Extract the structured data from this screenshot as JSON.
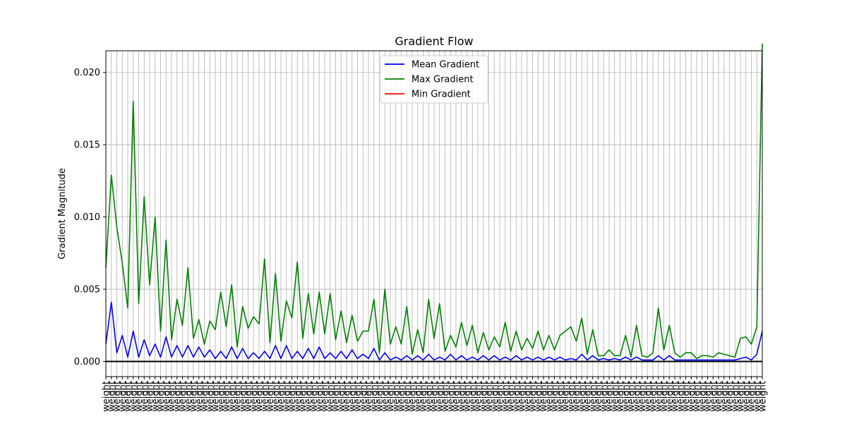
{
  "chart_data": {
    "type": "line",
    "title": "Gradient Flow",
    "xlabel": "",
    "ylabel": "Gradient Magnitude",
    "ylim": [
      -0.00105,
      0.0215
    ],
    "yticks": [
      0.0,
      0.005,
      0.01,
      0.015,
      0.02
    ],
    "ytick_labels": [
      "0.000",
      "0.005",
      "0.010",
      "0.015",
      "0.020"
    ],
    "x_tick_label": "weight",
    "grid": true,
    "legend_position": "upper center",
    "x": [
      0,
      1,
      2,
      3,
      4,
      5,
      6,
      7,
      8,
      9,
      10,
      11,
      12,
      13,
      14,
      15,
      16,
      17,
      18,
      19,
      20,
      21,
      22,
      23,
      24,
      25,
      26,
      27,
      28,
      29,
      30,
      31,
      32,
      33,
      34,
      35,
      36,
      37,
      38,
      39,
      40,
      41,
      42,
      43,
      44,
      45,
      46,
      47,
      48,
      49,
      50,
      51,
      52,
      53,
      54,
      55,
      56,
      57,
      58,
      59,
      60,
      61,
      62,
      63,
      64,
      65,
      66,
      67,
      68,
      69,
      70,
      71,
      72,
      73,
      74,
      75,
      76,
      77,
      78,
      79,
      80,
      81,
      82,
      83,
      84,
      85,
      86,
      87,
      88,
      89,
      90,
      91,
      92,
      93,
      94,
      95,
      96,
      97,
      98,
      99,
      100,
      101,
      102,
      103,
      104,
      105,
      106,
      107,
      108,
      109,
      110,
      111,
      112,
      113,
      114,
      115,
      116,
      117,
      118,
      119,
      120
    ],
    "series": [
      {
        "name": "Mean Gradient",
        "color": "#0000ff",
        "values": [
          0.0012,
          0.0041,
          0.0006,
          0.0018,
          0.0003,
          0.0021,
          0.0003,
          0.0015,
          0.0004,
          0.0012,
          0.0003,
          0.0017,
          0.0003,
          0.0011,
          0.0003,
          0.0011,
          0.0003,
          0.001,
          0.0003,
          0.0008,
          0.0002,
          0.0007,
          0.0002,
          0.001,
          0.0002,
          0.0009,
          0.0002,
          0.0006,
          0.0002,
          0.0007,
          0.0002,
          0.0011,
          0.0002,
          0.0011,
          0.0002,
          0.0007,
          0.0002,
          0.0009,
          0.0002,
          0.001,
          0.0002,
          0.0006,
          0.0002,
          0.0007,
          0.0002,
          0.0008,
          0.0002,
          0.0005,
          0.0002,
          0.0009,
          0.0001,
          0.0006,
          0.0001,
          0.0003,
          0.0001,
          0.0004,
          0.0001,
          0.0004,
          0.0001,
          0.0005,
          0.0001,
          0.0003,
          0.0001,
          0.0005,
          0.0001,
          0.0004,
          0.0001,
          0.0003,
          0.0001,
          0.0004,
          0.0001,
          0.0004,
          0.0001,
          0.0003,
          0.0001,
          0.0004,
          0.0001,
          0.0003,
          0.0001,
          0.0003,
          0.0001,
          0.0003,
          0.0001,
          0.0003,
          0.0001,
          0.0002,
          0.0001,
          0.0005,
          0.0001,
          0.0004,
          0.0001,
          0.0002,
          0.0001,
          0.0002,
          0.0001,
          0.0003,
          0.0001,
          0.0003,
          0.0001,
          0.0001,
          0.0001,
          0.0004,
          0.0001,
          0.0004,
          0.0001,
          0.0001,
          0.0001,
          0.0001,
          0.0001,
          0.0001,
          0.0001,
          0.0001,
          0.0001,
          0.0001,
          0.0001,
          0.0001,
          0.0002,
          0.0003,
          0.0001,
          0.0005,
          0.0021
        ]
      },
      {
        "name": "Max Gradient",
        "color": "#008000",
        "values": [
          0.0065,
          0.0129,
          0.0093,
          0.0068,
          0.0037,
          0.018,
          0.004,
          0.0114,
          0.0053,
          0.01,
          0.0021,
          0.0084,
          0.0015,
          0.0043,
          0.0025,
          0.0065,
          0.0016,
          0.0029,
          0.0012,
          0.0028,
          0.0022,
          0.0048,
          0.0024,
          0.0053,
          0.001,
          0.0038,
          0.0023,
          0.0031,
          0.0026,
          0.0071,
          0.0013,
          0.0061,
          0.0014,
          0.0042,
          0.003,
          0.0069,
          0.0016,
          0.0047,
          0.0019,
          0.0048,
          0.0019,
          0.0047,
          0.0015,
          0.0035,
          0.0013,
          0.0032,
          0.0014,
          0.0021,
          0.0021,
          0.0043,
          0.0006,
          0.005,
          0.0012,
          0.0024,
          0.0012,
          0.0038,
          0.0005,
          0.0022,
          0.0006,
          0.0043,
          0.0016,
          0.004,
          0.0007,
          0.0018,
          0.001,
          0.0027,
          0.0011,
          0.0025,
          0.0006,
          0.002,
          0.0008,
          0.0017,
          0.001,
          0.0027,
          0.0007,
          0.0021,
          0.0008,
          0.0016,
          0.0009,
          0.0021,
          0.0008,
          0.0018,
          0.0008,
          0.0018,
          0.0021,
          0.0024,
          0.0014,
          0.003,
          0.0005,
          0.0022,
          0.0004,
          0.0004,
          0.0008,
          0.0004,
          0.0004,
          0.0018,
          0.0003,
          0.0025,
          0.0004,
          0.0003,
          0.0006,
          0.0037,
          0.0008,
          0.0025,
          0.0006,
          0.0003,
          0.0006,
          0.0006,
          0.0002,
          0.0004,
          0.0004,
          0.0003,
          0.0006,
          0.0005,
          0.0004,
          0.0003,
          0.0016,
          0.0017,
          0.0012,
          0.0024,
          0.022
        ]
      },
      {
        "name": "Min Gradient",
        "color": "#ff0000",
        "values": [
          0,
          0,
          0,
          0,
          0,
          0,
          0,
          0,
          0,
          0,
          0,
          0,
          0,
          0,
          0,
          0,
          0,
          0,
          0,
          0,
          0,
          0,
          0,
          0,
          0,
          0,
          0,
          0,
          0,
          0,
          0,
          0,
          0,
          0,
          0,
          0,
          0,
          0,
          0,
          0,
          0,
          0,
          0,
          0,
          0,
          0,
          0,
          0,
          0,
          0,
          0,
          0,
          0,
          0,
          0,
          0,
          0,
          0,
          0,
          0,
          0,
          0,
          0,
          0,
          0,
          0,
          0,
          0,
          0,
          0,
          0,
          0,
          0,
          0,
          0,
          0,
          0,
          0,
          0,
          0,
          0,
          0,
          0,
          0,
          0,
          0,
          0,
          0,
          0,
          0,
          0,
          0,
          0,
          0,
          0,
          0,
          0,
          0,
          0,
          0,
          0,
          0,
          0,
          0,
          0,
          0,
          0,
          0,
          0,
          0,
          0,
          0,
          0,
          0,
          0,
          0,
          0,
          0,
          0,
          0,
          0
        ]
      }
    ]
  }
}
